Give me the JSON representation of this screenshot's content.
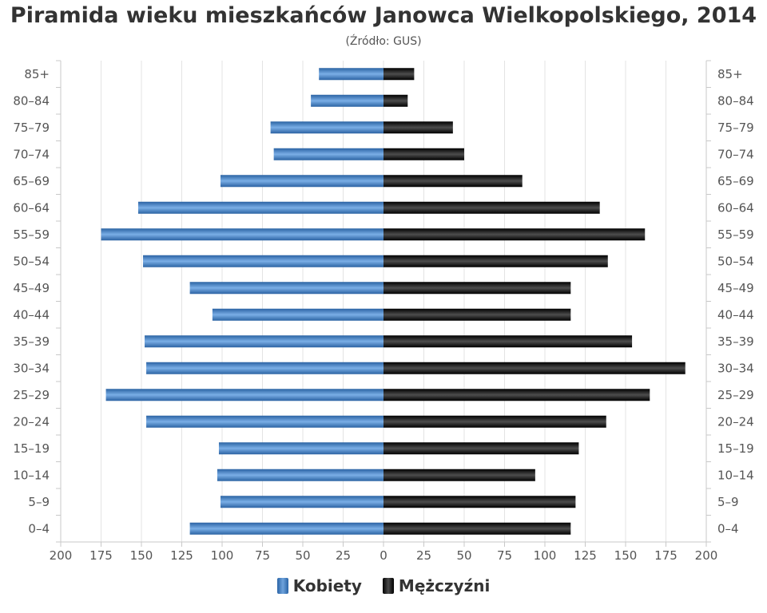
{
  "chart_data": {
    "type": "bar",
    "orientation": "horizontal-pyramid",
    "title": "Piramida wieku mieszkańców Janowca Wielkopolskiego, 2014",
    "subtitle": "(Źródło: GUS)",
    "categories": [
      "85+",
      "80–84",
      "75–79",
      "70–74",
      "65–69",
      "60–64",
      "55–59",
      "50–54",
      "45–49",
      "40–44",
      "35–39",
      "30–34",
      "25–29",
      "20–24",
      "15–19",
      "10–14",
      "5–9",
      "0–4"
    ],
    "series": [
      {
        "name": "Kobiety",
        "color": "#3f7dc2",
        "values": [
          40,
          45,
          70,
          68,
          101,
          152,
          175,
          149,
          120,
          106,
          148,
          147,
          172,
          147,
          102,
          103,
          101,
          120
        ]
      },
      {
        "name": "Mężczyźni",
        "color": "#1a1a1a",
        "values": [
          19,
          15,
          43,
          50,
          86,
          134,
          162,
          139,
          116,
          116,
          154,
          187,
          165,
          138,
          121,
          94,
          119,
          116
        ]
      }
    ],
    "xlim": [
      -200,
      200
    ],
    "x_ticks": [
      "200",
      "175",
      "150",
      "125",
      "100",
      "75",
      "50",
      "25",
      "0",
      "25",
      "50",
      "75",
      "100",
      "125",
      "150",
      "175",
      "200"
    ],
    "grid": true,
    "legend": "bottom-center"
  }
}
